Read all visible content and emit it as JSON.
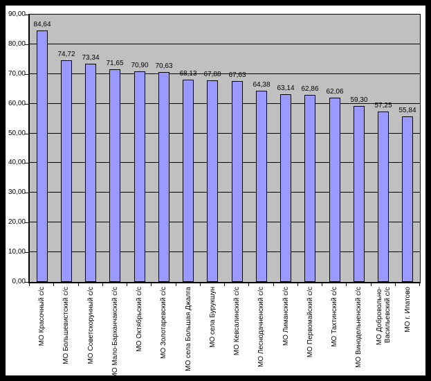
{
  "chart_data": {
    "type": "bar",
    "title": "",
    "xlabel": "",
    "ylabel": "",
    "legend": "none",
    "grid": "horizontal",
    "ylim": [
      0,
      90
    ],
    "y_step": 10,
    "y_tick_labels": [
      "0,00",
      "10,00",
      "20,00",
      "30,00",
      "40,00",
      "50,00",
      "60,00",
      "70,00",
      "80,00",
      "90,00"
    ],
    "categories": [
      "МО Красочный с/с",
      "МО Большевистский с/с",
      "МО Советскорунный с/с",
      "МО Мало-Барханчакский с/с",
      "МО Октябрьский с/с",
      "МО Золотаревский с/с",
      "МО села Большая Джалга",
      "МО села Бурукшун",
      "МО Кевсалинский с/с",
      "МО Леснодачненский с/с",
      "МО Лиманский с/с",
      "МО Первомайский с/с",
      "МО Тахтинский с/с",
      "МО Винодельненский с/с",
      "МО Добровольно-\nВасильевский с/с",
      "МО г. Ипатово"
    ],
    "values": [
      84.64,
      74.72,
      73.34,
      71.65,
      70.9,
      70.63,
      68.13,
      67.88,
      67.63,
      64.38,
      63.14,
      62.86,
      62.06,
      59.3,
      57.25,
      55.84
    ],
    "value_labels": [
      "84,64",
      "74,72",
      "73,34",
      "71,65",
      "70,90",
      "70,63",
      "68,13",
      "67,88",
      "67,63",
      "64,38",
      "63,14",
      "62,86",
      "62,06",
      "59,30",
      "57,25",
      "55,84"
    ],
    "colors": {
      "bar_fill": "#9999FF",
      "bar_border": "#000000",
      "plot_bg": "#C0C0C0",
      "gridline": "#000000",
      "axis": "#000000",
      "text": "#000000",
      "chart_bg": "#FFFFFF",
      "frame": "#000000"
    }
  }
}
